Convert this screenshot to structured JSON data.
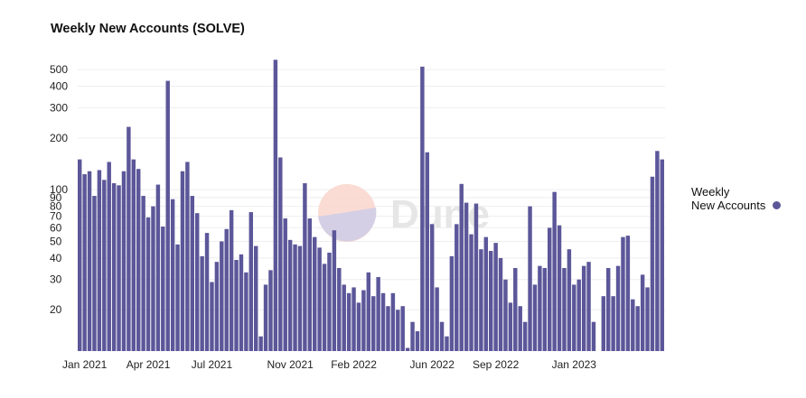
{
  "chart_data": {
    "type": "bar",
    "title": "Weekly New Accounts (SOLVE)",
    "xlabel": "",
    "ylabel": "",
    "yscale": "log",
    "ylim": [
      11.5,
      600
    ],
    "y_ticks": [
      20,
      30,
      40,
      50,
      60,
      70,
      80,
      90,
      100,
      200,
      300,
      400,
      500
    ],
    "x_tick_labels": [
      "Jan 2021",
      "Apr 2021",
      "Jul 2021",
      "Nov 2021",
      "Feb 2022",
      "Jun 2022",
      "Sep 2022",
      "Jan 2023"
    ],
    "x_tick_indices": [
      1,
      14,
      27,
      43,
      56,
      72,
      85,
      101
    ],
    "grid": "horizontal",
    "legend_position": "right",
    "series": [
      {
        "name": "Weekly\nNew Accounts",
        "color": "#5c5799",
        "values": [
          150,
          123,
          128,
          92,
          130,
          114,
          145,
          109,
          106,
          128,
          232,
          150,
          132,
          92,
          69,
          80,
          107,
          61,
          430,
          88,
          48,
          128,
          145,
          92,
          73,
          41,
          56,
          29,
          38,
          50,
          59,
          76,
          39,
          42,
          33,
          74,
          47,
          14,
          28,
          34,
          570,
          154,
          68,
          51,
          48,
          47,
          109,
          68,
          53,
          46,
          37,
          43,
          58,
          35,
          28,
          25,
          27,
          22,
          26,
          33,
          24,
          31,
          25,
          21,
          25,
          20,
          21,
          12,
          17,
          15,
          520,
          165,
          63,
          27,
          17,
          14,
          41,
          63,
          108,
          84,
          55,
          83,
          45,
          53,
          44,
          49,
          40,
          30,
          22,
          35,
          21,
          17,
          80,
          28,
          36,
          35,
          60,
          97,
          62,
          35,
          45,
          28,
          30,
          36,
          38,
          17,
          null,
          24,
          35,
          24,
          36,
          53,
          54,
          23,
          21,
          32,
          27,
          119,
          168,
          150
        ]
      }
    ]
  },
  "watermark": "Dune"
}
